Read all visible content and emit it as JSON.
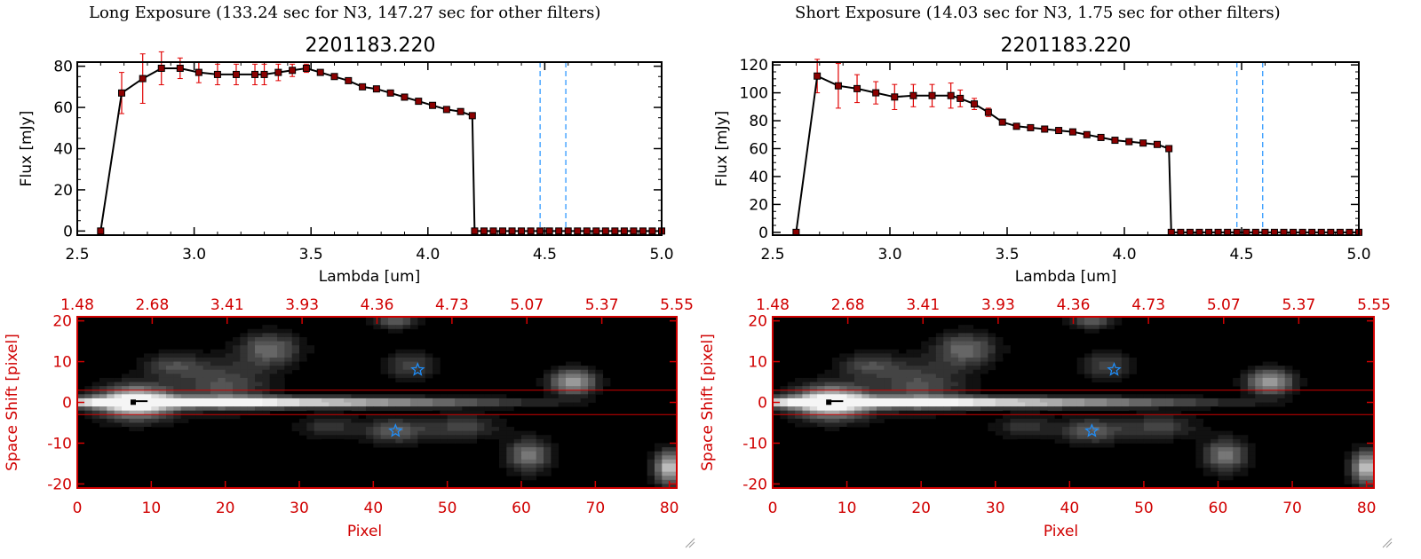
{
  "panels": [
    {
      "header": "Long Exposure (133.24 sec for N3, 147.27 sec for other filters)",
      "spectrum_title": "2201183.220",
      "image_label": "spectral-image-long"
    },
    {
      "header": "Short Exposure (14.03 sec for N3, 1.75 sec for other filters)",
      "spectrum_title": "2201183.220",
      "image_label": "spectral-image-short"
    }
  ],
  "chart_data": [
    {
      "type": "line",
      "title": "2201183.220",
      "xlabel": "Lambda [um]",
      "ylabel": "Flux [mJy]",
      "xlim": [
        2.5,
        5.0
      ],
      "ylim": [
        -2,
        82
      ],
      "xticks": [
        "2.5",
        "3.0",
        "3.5",
        "4.0",
        "4.5",
        "5.0"
      ],
      "yticks": [
        "0",
        "20",
        "40",
        "60",
        "80"
      ],
      "vlines": [
        4.48,
        4.59
      ],
      "x": [
        2.6,
        2.69,
        2.78,
        2.86,
        2.94,
        3.02,
        3.1,
        3.18,
        3.26,
        3.3,
        3.36,
        3.42,
        3.48,
        3.54,
        3.6,
        3.66,
        3.72,
        3.78,
        3.84,
        3.9,
        3.96,
        4.02,
        4.08,
        4.14,
        4.19,
        4.2,
        4.24,
        4.28,
        4.32,
        4.36,
        4.4,
        4.44,
        4.48,
        4.52,
        4.56,
        4.6,
        4.64,
        4.68,
        4.72,
        4.76,
        4.8,
        4.84,
        4.88,
        4.92,
        4.96,
        5.0
      ],
      "y": [
        0,
        67,
        74,
        79,
        79,
        77,
        76,
        76,
        76,
        76,
        77,
        78,
        79,
        77,
        75,
        73,
        70,
        69,
        67,
        65,
        63,
        61,
        59,
        58,
        56,
        0,
        0,
        0,
        0,
        0,
        0,
        0,
        0,
        0,
        0,
        0,
        0,
        0,
        0,
        0,
        0,
        0,
        0,
        0,
        0,
        0
      ],
      "err": [
        0,
        10,
        12,
        8,
        5,
        5,
        5,
        5,
        5,
        5,
        4,
        3,
        2,
        0,
        0,
        0,
        0,
        0,
        0,
        0,
        0,
        0,
        0,
        0,
        0,
        0,
        0,
        0,
        0,
        0,
        0,
        0,
        0,
        0,
        0,
        0,
        0,
        0,
        0,
        0,
        0,
        0,
        0,
        0,
        0,
        0
      ]
    },
    {
      "type": "line",
      "title": "2201183.220",
      "xlabel": "Lambda [um]",
      "ylabel": "Flux [mJy]",
      "xlim": [
        2.5,
        5.0
      ],
      "ylim": [
        -2,
        122
      ],
      "xticks": [
        "2.5",
        "3.0",
        "3.5",
        "4.0",
        "4.5",
        "5.0"
      ],
      "yticks": [
        "0",
        "20",
        "40",
        "60",
        "80",
        "100",
        "120"
      ],
      "vlines": [
        4.48,
        4.59
      ],
      "x": [
        2.6,
        2.69,
        2.78,
        2.86,
        2.94,
        3.02,
        3.1,
        3.18,
        3.26,
        3.3,
        3.36,
        3.42,
        3.48,
        3.54,
        3.6,
        3.66,
        3.72,
        3.78,
        3.84,
        3.9,
        3.96,
        4.02,
        4.08,
        4.14,
        4.19,
        4.2,
        4.24,
        4.28,
        4.32,
        4.36,
        4.4,
        4.44,
        4.48,
        4.52,
        4.56,
        4.6,
        4.64,
        4.68,
        4.72,
        4.76,
        4.8,
        4.84,
        4.88,
        4.92,
        4.96,
        5.0
      ],
      "y": [
        0,
        112,
        105,
        103,
        100,
        97,
        98,
        98,
        98,
        96,
        92,
        86,
        79,
        76,
        75,
        74,
        73,
        72,
        70,
        68,
        66,
        65,
        64,
        63,
        60,
        0,
        0,
        0,
        0,
        0,
        0,
        0,
        0,
        0,
        0,
        0,
        0,
        0,
        0,
        0,
        0,
        0,
        0,
        0,
        0,
        0
      ],
      "err": [
        0,
        12,
        16,
        10,
        8,
        9,
        8,
        8,
        9,
        6,
        4,
        3,
        2,
        0,
        0,
        0,
        0,
        0,
        0,
        0,
        0,
        0,
        0,
        0,
        0,
        0,
        0,
        0,
        0,
        0,
        0,
        0,
        0,
        0,
        0,
        0,
        0,
        0,
        0,
        0,
        0,
        0,
        0,
        0,
        0,
        0
      ]
    },
    {
      "type": "heatmap",
      "xlabel": "Pixel",
      "ylabel": "Space Shift [pixel]",
      "xlim": [
        0,
        81
      ],
      "ylim": [
        -21,
        21
      ],
      "xticks": [
        "0",
        "10",
        "20",
        "30",
        "40",
        "50",
        "60",
        "70",
        "80"
      ],
      "yticks": [
        "-20",
        "-10",
        "0",
        "10",
        "20"
      ],
      "top_ticks": [
        "1.48",
        "2.68",
        "3.41",
        "3.93",
        "4.36",
        "4.73",
        "5.07",
        "5.37",
        "5.55"
      ],
      "hlines": [
        3,
        -3
      ],
      "star_markers": [
        {
          "x": 46,
          "y": 8
        },
        {
          "x": 43,
          "y": -7
        }
      ],
      "sources": [
        {
          "x": 8,
          "y": 0,
          "w": 5,
          "h": 4,
          "amp": 1.0
        },
        {
          "x": 22,
          "y": 0,
          "w": 30,
          "h": 1.2,
          "amp": 0.55
        },
        {
          "x": 20,
          "y": 4,
          "w": 6,
          "h": 6,
          "amp": 0.35
        },
        {
          "x": 26,
          "y": 13,
          "w": 4,
          "h": 4,
          "amp": 0.45
        },
        {
          "x": 13,
          "y": 9,
          "w": 4,
          "h": 3,
          "amp": 0.3
        },
        {
          "x": 45,
          "y": 9,
          "w": 3,
          "h": 3,
          "amp": 0.35
        },
        {
          "x": 43,
          "y": 20,
          "w": 3,
          "h": 2,
          "amp": 0.4
        },
        {
          "x": 43,
          "y": -7,
          "w": 4,
          "h": 3,
          "amp": 0.4
        },
        {
          "x": 34,
          "y": -6,
          "w": 4,
          "h": 3,
          "amp": 0.25
        },
        {
          "x": 52,
          "y": -6,
          "w": 5,
          "h": 3,
          "amp": 0.3
        },
        {
          "x": 67,
          "y": 5,
          "w": 3,
          "h": 3,
          "amp": 0.7
        },
        {
          "x": 61,
          "y": -13,
          "w": 3,
          "h": 4,
          "amp": 0.5
        },
        {
          "x": 80,
          "y": -16,
          "w": 2,
          "h": 4,
          "amp": 0.8
        }
      ]
    },
    {
      "type": "heatmap",
      "xlabel": "Pixel",
      "ylabel": "Space Shift [pixel]",
      "xlim": [
        0,
        81
      ],
      "ylim": [
        -21,
        21
      ],
      "xticks": [
        "0",
        "10",
        "20",
        "30",
        "40",
        "50",
        "60",
        "70",
        "80"
      ],
      "yticks": [
        "-20",
        "-10",
        "0",
        "10",
        "20"
      ],
      "top_ticks": [
        "1.48",
        "2.68",
        "3.41",
        "3.93",
        "4.36",
        "4.73",
        "5.07",
        "5.37",
        "5.55"
      ],
      "hlines": [
        3,
        -3
      ],
      "star_markers": [
        {
          "x": 46,
          "y": 8
        },
        {
          "x": 43,
          "y": -7
        }
      ],
      "sources": [
        {
          "x": 8,
          "y": 0,
          "w": 5,
          "h": 4,
          "amp": 1.0
        },
        {
          "x": 22,
          "y": 0,
          "w": 30,
          "h": 1.2,
          "amp": 0.55
        },
        {
          "x": 20,
          "y": 4,
          "w": 6,
          "h": 6,
          "amp": 0.35
        },
        {
          "x": 26,
          "y": 13,
          "w": 4,
          "h": 4,
          "amp": 0.45
        },
        {
          "x": 13,
          "y": 9,
          "w": 4,
          "h": 3,
          "amp": 0.3
        },
        {
          "x": 45,
          "y": 9,
          "w": 3,
          "h": 3,
          "amp": 0.35
        },
        {
          "x": 43,
          "y": 20,
          "w": 3,
          "h": 2,
          "amp": 0.4
        },
        {
          "x": 43,
          "y": -7,
          "w": 4,
          "h": 3,
          "amp": 0.4
        },
        {
          "x": 34,
          "y": -6,
          "w": 4,
          "h": 3,
          "amp": 0.25
        },
        {
          "x": 52,
          "y": -6,
          "w": 5,
          "h": 3,
          "amp": 0.3
        },
        {
          "x": 67,
          "y": 5,
          "w": 3,
          "h": 3,
          "amp": 0.7
        },
        {
          "x": 61,
          "y": -13,
          "w": 3,
          "h": 4,
          "amp": 0.5
        },
        {
          "x": 80,
          "y": -16,
          "w": 2,
          "h": 4,
          "amp": 0.8
        }
      ]
    }
  ],
  "colors": {
    "axis": "#000000",
    "line": "#000000",
    "marker": "#8b0000",
    "errorbar": "#e00000",
    "vline": "#1e90ff",
    "image_axis": "#d00000",
    "star": "#1e90ff",
    "zero_dash": "#e00000"
  }
}
